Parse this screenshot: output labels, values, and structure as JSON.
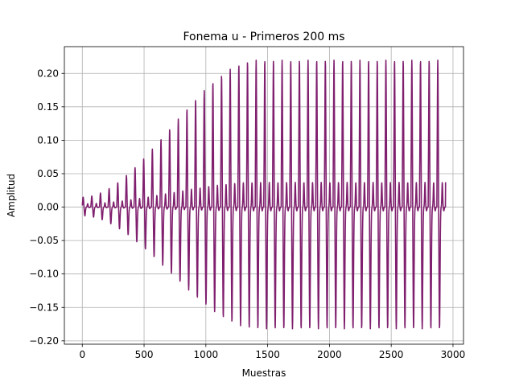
{
  "chart_data": {
    "type": "line",
    "title": "Fonema u - Primeros 200 ms",
    "xlabel": "Muestras",
    "ylabel": "Amplitud",
    "xlim": [
      -145,
      3085
    ],
    "ylim": [
      -0.205,
      0.24
    ],
    "xticks": [
      0,
      500,
      1000,
      1500,
      2000,
      2500,
      3000
    ],
    "xtick_labels": [
      "0",
      "500",
      "1000",
      "1500",
      "2000",
      "2500",
      "3000"
    ],
    "yticks": [
      -0.2,
      -0.15,
      -0.1,
      -0.05,
      0.0,
      0.05,
      0.1,
      0.15,
      0.2
    ],
    "ytick_labels": [
      "−0.20",
      "−0.15",
      "−0.10",
      "−0.05",
      "0.00",
      "0.05",
      "0.10",
      "0.15",
      "0.20"
    ],
    "grid": true,
    "line_color": "#7f1f6e",
    "series": [
      {
        "x_start": 0,
        "x_end": 2940,
        "period_samples": 70,
        "onset_samples": [
          0,
          1420
        ],
        "positive_peak_range": [
          0.015,
          0.22
        ],
        "negative_peak_range": [
          -0.013,
          -0.182
        ],
        "secondary_peak_range": [
          0.005,
          0.037
        ]
      }
    ]
  }
}
